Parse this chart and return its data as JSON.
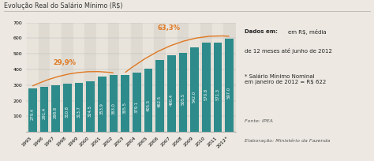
{
  "title": "Evolução Real do Salário Mínimo (R$)",
  "years": [
    "1995",
    "1996",
    "1997",
    "1998",
    "1999",
    "2000",
    "2001",
    "2002",
    "2003",
    "2004",
    "2005",
    "2006",
    "2007",
    "2008",
    "2009",
    "2010",
    "2011",
    "2012*"
  ],
  "values": [
    279.4,
    291.4,
    298.8,
    310.8,
    313.7,
    324.5,
    353.9,
    363.0,
    365.5,
    379.1,
    405.5,
    462.5,
    490.4,
    505.5,
    542.0,
    570.8,
    571.3,
    597.0
  ],
  "bar_color": "#2e8b8b",
  "bg_color": "#ede9e2",
  "stripe_color_odd": "#dedad2",
  "stripe_color_even": "#e8e4dc",
  "annotation_color": "#e07820",
  "text_color_white": "#ffffff",
  "ylim": [
    0,
    700
  ],
  "yticks": [
    0,
    100,
    200,
    300,
    400,
    500,
    600,
    700
  ],
  "arc1_label": "29,9%",
  "arc2_label": "63,3%",
  "note_bold": "Dados em:",
  "note_normal": " em R$, média\nde 12 meses até junho de 2012",
  "note2": "* Salário Mínimo Nominal\nem janeiro de 2012 = R$ 622",
  "fonte": "Fonte: IPEA",
  "elab": "Elaboração: Ministério da Fazenda",
  "title_fontsize": 5.8,
  "bar_fontsize": 3.8,
  "axis_fontsize": 4.5,
  "note_fontsize": 5.0,
  "fonte_fontsize": 4.5
}
